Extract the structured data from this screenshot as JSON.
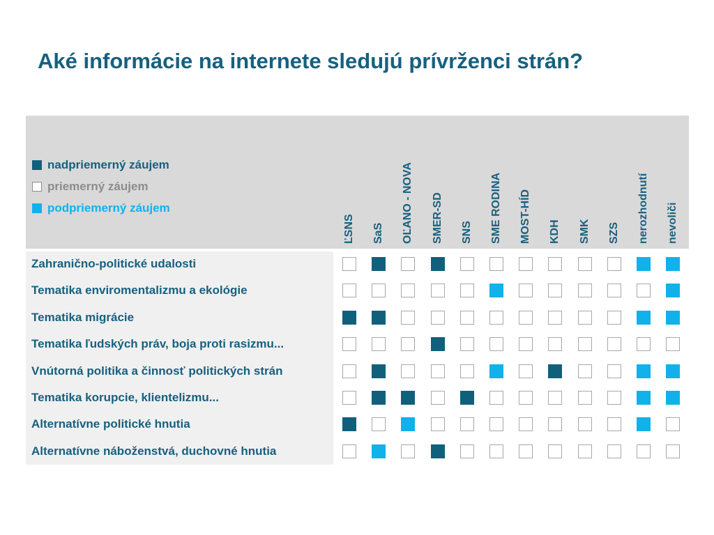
{
  "title": "Aké informácie na internete sledujú prívrženci strán?",
  "chart_data": {
    "type": "table",
    "title": "Aké informácie na internete sledujú prívrženci strán?",
    "legend": [
      {
        "key": "above",
        "label": "nadpriemerný záujem",
        "color": "#10607c"
      },
      {
        "key": "average",
        "label": "priemerný záujem",
        "color": "#8c8c8c"
      },
      {
        "key": "below",
        "label": "podpriemerný záujem",
        "color": "#11b1ec"
      }
    ],
    "columns": [
      "ĽSNS",
      "SaS",
      "OĽANO - NOVA",
      "SMER-SD",
      "SNS",
      "SME RODINA",
      "MOST-HÍD",
      "KDH",
      "SMK",
      "SZS",
      "nerozhodnutí",
      "nevoliči"
    ],
    "rows": [
      {
        "label": "Zahranično-politické udalosti",
        "values": [
          "average",
          "above",
          "average",
          "above",
          "average",
          "average",
          "average",
          "average",
          "average",
          "average",
          "below",
          "below"
        ]
      },
      {
        "label": "Tematika enviromentalizmu a ekológie",
        "values": [
          "average",
          "average",
          "average",
          "average",
          "average",
          "below",
          "average",
          "average",
          "average",
          "average",
          "average",
          "below"
        ]
      },
      {
        "label": "Tematika migrácie",
        "values": [
          "above",
          "above",
          "average",
          "average",
          "average",
          "average",
          "average",
          "average",
          "average",
          "average",
          "below",
          "below"
        ]
      },
      {
        "label": "Tematika ľudských práv, boja proti rasizmu...",
        "values": [
          "average",
          "average",
          "average",
          "above",
          "average",
          "average",
          "average",
          "average",
          "average",
          "average",
          "average",
          "average"
        ]
      },
      {
        "label": "Vnútorná politika a činnosť politických strán",
        "values": [
          "average",
          "above",
          "average",
          "average",
          "average",
          "below",
          "average",
          "above",
          "average",
          "average",
          "below",
          "below"
        ]
      },
      {
        "label": "Tematika korupcie, klientelizmu...",
        "values": [
          "average",
          "above",
          "above",
          "average",
          "above",
          "average",
          "average",
          "average",
          "average",
          "average",
          "below",
          "below"
        ]
      },
      {
        "label": "Alternatívne politické hnutia",
        "values": [
          "above",
          "average",
          "below",
          "average",
          "average",
          "average",
          "average",
          "average",
          "average",
          "average",
          "below",
          "average"
        ]
      },
      {
        "label": "Alternatívne náboženstvá, duchovné hnutia",
        "values": [
          "average",
          "below",
          "average",
          "above",
          "average",
          "average",
          "average",
          "average",
          "average",
          "average",
          "average",
          "average"
        ]
      }
    ]
  }
}
